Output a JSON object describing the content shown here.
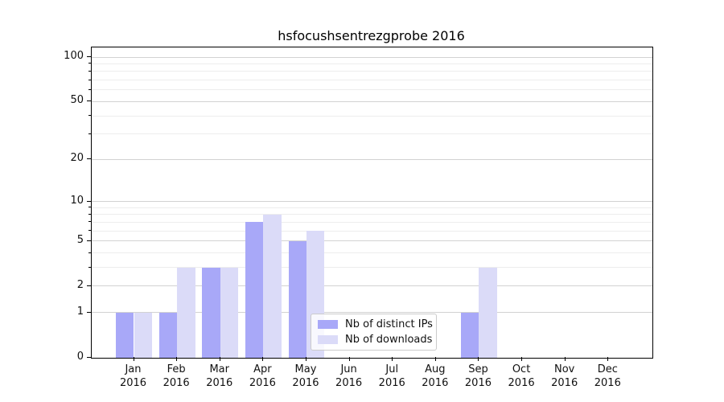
{
  "title": "hsfocushsentrezgprobe 2016",
  "legend": {
    "items": [
      {
        "label": "Nb of distinct IPs",
        "color": "#a8a8f8"
      },
      {
        "label": "Nb of downloads",
        "color": "#dbdbf8"
      }
    ]
  },
  "chart_data": {
    "type": "bar",
    "title": "hsfocushsentrezgprobe 2016",
    "categories": [
      "Jan 2016",
      "Feb 2016",
      "Mar 2016",
      "Apr 2016",
      "May 2016",
      "Jun 2016",
      "Jul 2016",
      "Aug 2016",
      "Sep 2016",
      "Oct 2016",
      "Nov 2016",
      "Dec 2016"
    ],
    "series": [
      {
        "name": "Nb of distinct IPs",
        "color": "#a8a8f8",
        "values": [
          1,
          1,
          3,
          7,
          5,
          0,
          0,
          0,
          1,
          0,
          0,
          0
        ]
      },
      {
        "name": "Nb of downloads",
        "color": "#dbdbf8",
        "values": [
          1,
          3,
          3,
          8,
          6,
          0,
          0,
          0,
          3,
          0,
          0,
          0
        ]
      }
    ],
    "xlabel": "",
    "ylabel": "",
    "yscale": "log10(1+x)",
    "ylim": [
      0,
      116
    ],
    "y_major_ticks": [
      0,
      1,
      2,
      5,
      10,
      20,
      50,
      100
    ],
    "y_minor_ticks": [
      3,
      4,
      6,
      7,
      8,
      9,
      30,
      40,
      60,
      70,
      80,
      90
    ],
    "grid": "horizontal",
    "legend_position": "lower center-right inside plot"
  }
}
